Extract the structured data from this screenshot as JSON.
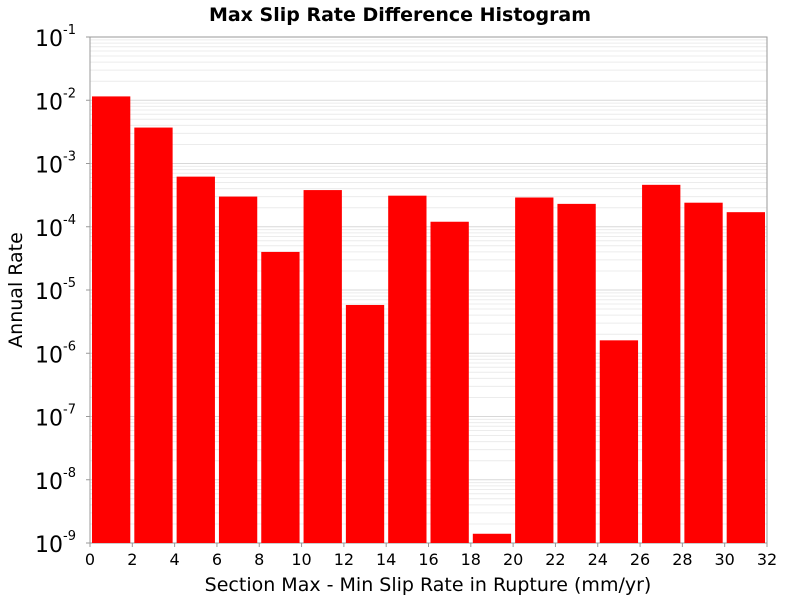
{
  "chart_data": {
    "type": "bar",
    "title": "Max Slip Rate Difference Histogram",
    "xlabel": "Section Max - Min Slip Rate in Rupture (mm/yr)",
    "ylabel": "Annual Rate",
    "x_bin_width": 2,
    "x_ticks": [
      0,
      2,
      4,
      6,
      8,
      10,
      12,
      14,
      16,
      18,
      20,
      22,
      24,
      26,
      28,
      30,
      32
    ],
    "xlim": [
      0,
      32
    ],
    "y_scale": "log",
    "ylim": [
      1e-09,
      0.1
    ],
    "y_ticks": [
      {
        "base": "10",
        "exp": "-1"
      },
      {
        "base": "10",
        "exp": "-2"
      },
      {
        "base": "10",
        "exp": "-3"
      },
      {
        "base": "10",
        "exp": "-4"
      },
      {
        "base": "10",
        "exp": "-5"
      },
      {
        "base": "10",
        "exp": "-6"
      },
      {
        "base": "10",
        "exp": "-7"
      },
      {
        "base": "10",
        "exp": "-8"
      },
      {
        "base": "10",
        "exp": "-9"
      }
    ],
    "bars": [
      {
        "x": 1,
        "value": 0.0115
      },
      {
        "x": 3,
        "value": 0.0037
      },
      {
        "x": 5,
        "value": 0.00062
      },
      {
        "x": 7,
        "value": 0.0003
      },
      {
        "x": 9,
        "value": 4e-05
      },
      {
        "x": 11,
        "value": 0.00038
      },
      {
        "x": 13,
        "value": 5.8e-06
      },
      {
        "x": 15,
        "value": 0.00031
      },
      {
        "x": 17,
        "value": 0.00012
      },
      {
        "x": 19,
        "value": 1.4e-09
      },
      {
        "x": 21,
        "value": 0.00029
      },
      {
        "x": 23,
        "value": 0.00023
      },
      {
        "x": 25,
        "value": 1.6e-06
      },
      {
        "x": 27,
        "value": 0.00046
      },
      {
        "x": 29,
        "value": 0.00024
      },
      {
        "x": 31,
        "value": 0.00017
      }
    ],
    "bar_color": "#ff0000",
    "grid": true,
    "legend": "none"
  }
}
